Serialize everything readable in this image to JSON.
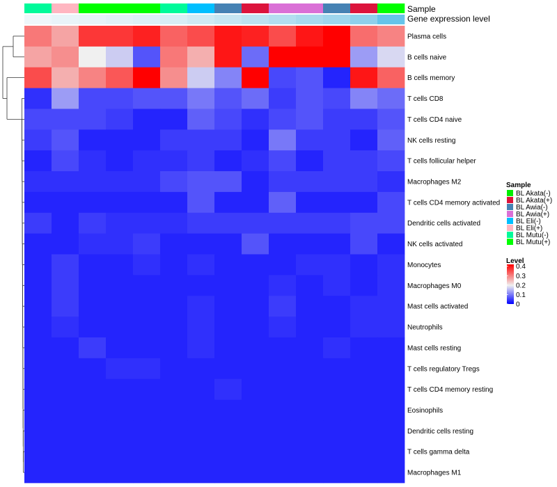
{
  "chart_data": {
    "type": "heatmap",
    "annotation_labels": [
      "Sample",
      "Gene expression level"
    ],
    "samples": [
      "BL Mutu(-)",
      "BL Eli(+)",
      "BL Mutu(+)",
      "BL Mutu(+)",
      "BL Mutu(+)",
      "BL Mutu(-)",
      "BL Eli(-)",
      "BL Awia(-)",
      "BL Akata(+)",
      "BL Awia(+)",
      "BL Awia(+)",
      "BL Awia(-)",
      "BL Akata(+)",
      "BL Mutu(+)"
    ],
    "expression_level_colors": [
      "#eef6fa",
      "#e9f4f9",
      "#e6f3f8",
      "#e1f1f7",
      "#dcf0f6",
      "#d8eef6",
      "#cfeaf4",
      "#c6e6f2",
      "#bde2f0",
      "#b3def0",
      "#a8daee",
      "#9ed6ed",
      "#8fd0eb",
      "#66c4ea"
    ],
    "rows": [
      "Plasma cells",
      "B cells naive",
      "B cells memory",
      "T cells CD8",
      "T cells CD4 naive",
      "NK cells resting",
      "T cells follicular helper",
      "Macrophages M2",
      "T cells CD4 memory activated",
      "Dendritic cells activated",
      "NK cells activated",
      "Monocytes",
      "Macrophages M0",
      "Mast cells activated",
      "Neutrophils",
      "Mast cells resting",
      "T cells regulatory  Tregs",
      "T cells CD4 memory resting",
      "Eosinophils",
      "Dendritic cells resting",
      "T cells gamma delta",
      "Macrophages M1"
    ],
    "values": [
      [
        0.31,
        0.27,
        0.37,
        0.37,
        0.39,
        0.33,
        0.35,
        0.4,
        0.39,
        0.35,
        0.4,
        0.42,
        0.32,
        0.3
      ],
      [
        0.27,
        0.29,
        0.2,
        0.17,
        0.07,
        0.31,
        0.26,
        0.4,
        0.09,
        0.45,
        0.45,
        0.45,
        0.13,
        0.18
      ],
      [
        0.35,
        0.26,
        0.3,
        0.34,
        0.45,
        0.29,
        0.17,
        0.11,
        0.45,
        0.06,
        0.07,
        0.03,
        0.4,
        0.33
      ],
      [
        0.04,
        0.13,
        0.06,
        0.06,
        0.07,
        0.07,
        0.1,
        0.07,
        0.09,
        0.05,
        0.07,
        0.06,
        0.11,
        0.09
      ],
      [
        0.06,
        0.06,
        0.06,
        0.05,
        0.03,
        0.03,
        0.08,
        0.06,
        0.04,
        0.06,
        0.07,
        0.05,
        0.05,
        0.07
      ],
      [
        0.05,
        0.07,
        0.03,
        0.03,
        0.03,
        0.05,
        0.05,
        0.05,
        0.03,
        0.1,
        0.05,
        0.05,
        0.03,
        0.08
      ],
      [
        0.03,
        0.06,
        0.04,
        0.03,
        0.04,
        0.04,
        0.05,
        0.03,
        0.04,
        0.06,
        0.03,
        0.05,
        0.05,
        0.06
      ],
      [
        0.04,
        0.04,
        0.04,
        0.04,
        0.04,
        0.06,
        0.07,
        0.07,
        0.03,
        0.05,
        0.05,
        0.05,
        0.05,
        0.04
      ],
      [
        0.03,
        0.03,
        0.03,
        0.03,
        0.03,
        0.03,
        0.07,
        0.03,
        0.03,
        0.08,
        0.03,
        0.03,
        0.03,
        0.06
      ],
      [
        0.05,
        0.03,
        0.05,
        0.04,
        0.04,
        0.04,
        0.05,
        0.05,
        0.05,
        0.05,
        0.05,
        0.05,
        0.06,
        0.06
      ],
      [
        0.03,
        0.03,
        0.04,
        0.04,
        0.05,
        0.03,
        0.03,
        0.03,
        0.07,
        0.03,
        0.03,
        0.03,
        0.06,
        0.03
      ],
      [
        0.03,
        0.05,
        0.03,
        0.03,
        0.04,
        0.03,
        0.04,
        0.03,
        0.03,
        0.03,
        0.04,
        0.04,
        0.03,
        0.04
      ],
      [
        0.03,
        0.05,
        0.03,
        0.03,
        0.03,
        0.03,
        0.03,
        0.03,
        0.03,
        0.04,
        0.03,
        0.04,
        0.03,
        0.04
      ],
      [
        0.03,
        0.05,
        0.03,
        0.03,
        0.03,
        0.03,
        0.04,
        0.03,
        0.03,
        0.05,
        0.03,
        0.03,
        0.04,
        0.04
      ],
      [
        0.03,
        0.04,
        0.03,
        0.03,
        0.03,
        0.03,
        0.04,
        0.03,
        0.03,
        0.04,
        0.03,
        0.03,
        0.04,
        0.04
      ],
      [
        0.03,
        0.03,
        0.05,
        0.03,
        0.03,
        0.03,
        0.04,
        0.03,
        0.03,
        0.03,
        0.03,
        0.04,
        0.03,
        0.03
      ],
      [
        0.03,
        0.03,
        0.03,
        0.04,
        0.04,
        0.03,
        0.03,
        0.03,
        0.03,
        0.03,
        0.03,
        0.03,
        0.03,
        0.03
      ],
      [
        0.03,
        0.03,
        0.03,
        0.03,
        0.03,
        0.03,
        0.03,
        0.04,
        0.03,
        0.03,
        0.03,
        0.03,
        0.03,
        0.03
      ],
      [
        0.03,
        0.03,
        0.03,
        0.03,
        0.03,
        0.03,
        0.03,
        0.03,
        0.03,
        0.03,
        0.03,
        0.03,
        0.03,
        0.03
      ],
      [
        0.03,
        0.03,
        0.03,
        0.03,
        0.03,
        0.03,
        0.03,
        0.03,
        0.03,
        0.03,
        0.03,
        0.03,
        0.03,
        0.03
      ],
      [
        0.03,
        0.03,
        0.03,
        0.03,
        0.03,
        0.03,
        0.03,
        0.03,
        0.03,
        0.03,
        0.03,
        0.03,
        0.03,
        0.03
      ],
      [
        0.03,
        0.03,
        0.03,
        0.03,
        0.03,
        0.03,
        0.03,
        0.03,
        0.03,
        0.03,
        0.03,
        0.03,
        0.03,
        0.03
      ]
    ],
    "legend_sample": {
      "title": "Sample",
      "entries": [
        {
          "label": "BL Akata(-)",
          "color": "#00ee00"
        },
        {
          "label": "BL Akata(+)",
          "color": "#dc143c"
        },
        {
          "label": "BL Awia(-)",
          "color": "#4682b4"
        },
        {
          "label": "BL Awia(+)",
          "color": "#da70d6"
        },
        {
          "label": "BL Eli(-)",
          "color": "#00bfff"
        },
        {
          "label": "BL Eli(+)",
          "color": "#ffb6c1"
        },
        {
          "label": "BL Mutu(-)",
          "color": "#00fa9a"
        },
        {
          "label": "BL Mutu(+)",
          "color": "#00ff00"
        }
      ]
    },
    "legend_level": {
      "title": "Level",
      "ticks": [
        "0.4",
        "0.3",
        "0.2",
        "0.1",
        "0"
      ],
      "tick_values": [
        0.4,
        0.3,
        0.2,
        0.1,
        0
      ],
      "range": [
        0,
        0.42
      ],
      "colors": [
        "#0000ff",
        "#f0f0f0",
        "#ff0000"
      ]
    },
    "dendrogram": "row",
    "grid": false,
    "legend_position": "right"
  }
}
